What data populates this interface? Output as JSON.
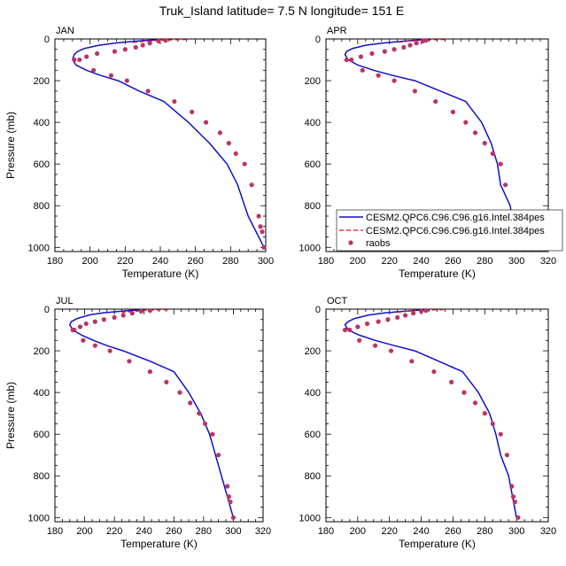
{
  "title": "Truk_Island  latitude= 7.5 N longitude= 151 E",
  "colors": {
    "model1": "#1010c8",
    "model2": "#dd1111",
    "obs": "#bb3366"
  },
  "legend": {
    "placement": "inside-bottom-right of APR panel",
    "entries": [
      {
        "label": "CESM2.QPC6.C96.C96.g16.Intel.384pes",
        "style": "solid-line",
        "color": "#1010c8"
      },
      {
        "label": "CESM2.QPC6.C96.C96.g16.Intel.384pes",
        "style": "dashed-line",
        "color": "#dd1111"
      },
      {
        "label": "raobs",
        "style": "dots",
        "color": "#bb3366"
      }
    ]
  },
  "chart_data": [
    {
      "type": "line",
      "title": "JAN",
      "xlabel": "Temperature (K)",
      "ylabel": "Pressure (mb)",
      "xlim": [
        180,
        300
      ],
      "ylim": [
        1020,
        0
      ],
      "xticks": [
        "180",
        "200",
        "220",
        "240",
        "260",
        "280",
        "300"
      ],
      "yticks": [
        "0",
        "200",
        "400",
        "600",
        "800",
        "1000"
      ],
      "series": [
        {
          "name": "CESM2.QPC6.C96.C96.g16.Intel.384pes",
          "style": "solid",
          "x": [
            240,
            232,
            220,
            212,
            205,
            197,
            193,
            191,
            190,
            192,
            198,
            206,
            216,
            228,
            242,
            256,
            268,
            278,
            284,
            288,
            290,
            296,
            299
          ],
          "y": [
            3,
            7,
            15,
            22,
            30,
            45,
            60,
            75,
            100,
            125,
            150,
            175,
            200,
            250,
            300,
            400,
            500,
            600,
            700,
            800,
            850,
            950,
            1000
          ]
        },
        {
          "name": "CESM2.QPC6.C96.C96.g16.Intel.384pes",
          "style": "dashed",
          "x": [
            255,
            248,
            240,
            232,
            224
          ],
          "y": [
            3,
            4,
            6,
            10,
            17
          ]
        },
        {
          "name": "raobs",
          "style": "points",
          "x": [
            243,
            239,
            234,
            230,
            226,
            220,
            214,
            204,
            198,
            194,
            191,
            202,
            212,
            221,
            233,
            248,
            258,
            266,
            274,
            279,
            283,
            288,
            292,
            296,
            297,
            298,
            299
          ],
          "y": [
            7,
            10,
            20,
            30,
            40,
            50,
            60,
            70,
            85,
            100,
            100,
            150,
            175,
            200,
            250,
            300,
            350,
            400,
            450,
            500,
            550,
            600,
            700,
            850,
            900,
            925,
            1000
          ]
        }
      ]
    },
    {
      "type": "line",
      "title": "APR",
      "xlabel": "Temperature (K)",
      "ylabel": "",
      "xlim": [
        180,
        320
      ],
      "ylim": [
        1020,
        0
      ],
      "xticks": [
        "180",
        "200",
        "220",
        "240",
        "260",
        "280",
        "300",
        "320"
      ],
      "yticks": [
        "0",
        "200",
        "400",
        "600",
        "800",
        "1000"
      ],
      "series": [
        {
          "name": "CESM2.QPC6.C96.C96.g16.Intel.384pes",
          "style": "solid",
          "x": [
            243,
            235,
            225,
            215,
            205,
            197,
            193,
            192,
            194,
            200,
            210,
            222,
            236,
            252,
            268,
            278,
            284,
            288,
            290,
            296,
            300
          ],
          "y": [
            3,
            7,
            13,
            20,
            30,
            45,
            60,
            75,
            100,
            125,
            150,
            175,
            200,
            250,
            300,
            400,
            500,
            600,
            700,
            800,
            1000
          ]
        },
        {
          "name": "CESM2.QPC6.C96.C96.g16.Intel.384pes",
          "style": "dashed",
          "x": [
            255,
            248,
            240,
            232,
            224
          ],
          "y": [
            3,
            4,
            6,
            10,
            17
          ]
        },
        {
          "name": "raobs",
          "style": "points",
          "x": [
            243,
            241,
            237,
            233,
            229,
            223,
            217,
            209,
            202,
            196,
            193,
            203,
            213,
            223,
            236,
            249,
            260,
            268,
            274,
            280,
            285,
            290,
            293,
            296,
            297,
            299,
            301
          ],
          "y": [
            7,
            10,
            20,
            30,
            40,
            50,
            60,
            70,
            85,
            100,
            100,
            150,
            175,
            200,
            250,
            300,
            350,
            400,
            450,
            500,
            550,
            600,
            700,
            850,
            900,
            925,
            1000
          ]
        }
      ]
    },
    {
      "type": "line",
      "title": "JUL",
      "xlabel": "Temperature (K)",
      "ylabel": "Pressure (mb)",
      "xlim": [
        180,
        320
      ],
      "ylim": [
        1020,
        0
      ],
      "xticks": [
        "180",
        "200",
        "220",
        "240",
        "260",
        "280",
        "300",
        "320"
      ],
      "yticks": [
        "0",
        "200",
        "400",
        "600",
        "800",
        "1000"
      ],
      "series": [
        {
          "name": "CESM2.QPC6.C96.C96.g16.Intel.384pes",
          "style": "solid",
          "x": [
            240,
            232,
            222,
            212,
            203,
            195,
            191,
            190,
            192,
            198,
            206,
            215,
            226,
            244,
            260,
            270,
            278,
            284,
            288,
            292,
            300
          ],
          "y": [
            3,
            6,
            12,
            18,
            28,
            45,
            60,
            75,
            100,
            125,
            150,
            175,
            200,
            250,
            300,
            400,
            500,
            600,
            700,
            800,
            1000
          ]
        },
        {
          "name": "CESM2.QPC6.C96.C96.g16.Intel.384pes",
          "style": "dashed",
          "x": [
            256,
            249,
            241,
            233,
            225
          ],
          "y": [
            3,
            4,
            6,
            10,
            17
          ]
        },
        {
          "name": "raobs",
          "style": "points",
          "x": [
            244,
            238,
            232,
            226,
            220,
            213,
            207,
            201,
            197,
            192,
            193,
            199,
            207,
            217,
            230,
            244,
            255,
            264,
            271,
            277,
            281,
            286,
            290,
            296,
            297,
            298,
            300
          ],
          "y": [
            7,
            10,
            20,
            30,
            40,
            50,
            60,
            70,
            85,
            100,
            100,
            150,
            175,
            200,
            250,
            300,
            350,
            400,
            450,
            500,
            550,
            600,
            700,
            850,
            900,
            925,
            1000
          ]
        }
      ]
    },
    {
      "type": "line",
      "title": "OCT",
      "xlabel": "Temperature (K)",
      "ylabel": "",
      "xlim": [
        180,
        320
      ],
      "ylim": [
        1020,
        0
      ],
      "xticks": [
        "180",
        "200",
        "220",
        "240",
        "260",
        "280",
        "300",
        "320"
      ],
      "yticks": [
        "0",
        "200",
        "400",
        "600",
        "800",
        "1000"
      ],
      "series": [
        {
          "name": "CESM2.QPC6.C96.C96.g16.Intel.384pes",
          "style": "solid",
          "x": [
            245,
            237,
            227,
            217,
            207,
            198,
            194,
            192,
            194,
            201,
            211,
            223,
            236,
            251,
            266,
            276,
            283,
            287,
            290,
            295,
            300
          ],
          "y": [
            3,
            6,
            12,
            18,
            28,
            45,
            60,
            75,
            100,
            125,
            150,
            175,
            200,
            250,
            300,
            400,
            500,
            600,
            700,
            800,
            1000
          ]
        },
        {
          "name": "CESM2.QPC6.C96.C96.g16.Intel.384pes",
          "style": "dashed",
          "x": [
            254,
            247,
            239,
            231,
            223
          ],
          "y": [
            3,
            4,
            6,
            10,
            17
          ]
        },
        {
          "name": "raobs",
          "style": "points",
          "x": [
            243,
            240,
            235,
            230,
            225,
            219,
            213,
            206,
            200,
            195,
            192,
            201,
            211,
            221,
            234,
            248,
            259,
            267,
            274,
            280,
            285,
            290,
            294,
            297,
            298,
            299,
            301
          ],
          "y": [
            7,
            10,
            20,
            30,
            40,
            50,
            60,
            70,
            85,
            100,
            100,
            150,
            175,
            200,
            250,
            300,
            350,
            400,
            450,
            500,
            550,
            600,
            700,
            850,
            900,
            925,
            1000
          ]
        }
      ]
    }
  ]
}
